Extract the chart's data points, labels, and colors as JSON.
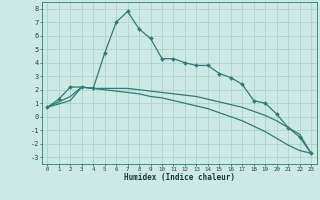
{
  "xlabel": "Humidex (Indice chaleur)",
  "background_color": "#cce9e5",
  "grid_color": "#aacfcb",
  "line_color": "#2e7d72",
  "xlim": [
    -0.5,
    23.5
  ],
  "ylim": [
    -3.5,
    8.5
  ],
  "xticks": [
    0,
    1,
    2,
    3,
    4,
    5,
    6,
    7,
    8,
    9,
    10,
    11,
    12,
    13,
    14,
    15,
    16,
    17,
    18,
    19,
    20,
    21,
    22,
    23
  ],
  "yticks": [
    -3,
    -2,
    -1,
    0,
    1,
    2,
    3,
    4,
    5,
    6,
    7,
    8
  ],
  "series1_x": [
    0,
    1,
    2,
    3,
    4,
    5,
    6,
    7,
    8,
    9,
    10,
    11,
    12,
    13,
    14,
    15,
    16,
    17,
    18,
    19,
    20,
    21,
    22,
    23
  ],
  "series1_y": [
    0.7,
    1.3,
    2.2,
    2.2,
    2.1,
    4.7,
    7.0,
    7.8,
    6.5,
    5.8,
    4.3,
    4.3,
    4.0,
    3.8,
    3.8,
    3.2,
    2.9,
    2.4,
    1.2,
    1.0,
    0.2,
    -0.8,
    -1.5,
    -2.7
  ],
  "series2_x": [
    0,
    2,
    3,
    4,
    5,
    6,
    7,
    8,
    9,
    10,
    11,
    12,
    13,
    14,
    15,
    16,
    17,
    18,
    19,
    20,
    21,
    22,
    23
  ],
  "series2_y": [
    0.7,
    1.5,
    2.2,
    2.1,
    2.1,
    2.1,
    2.1,
    2.0,
    1.9,
    1.8,
    1.7,
    1.6,
    1.5,
    1.3,
    1.1,
    0.9,
    0.7,
    0.4,
    0.1,
    -0.3,
    -0.8,
    -1.3,
    -2.7
  ],
  "series3_x": [
    0,
    2,
    3,
    4,
    5,
    6,
    7,
    8,
    9,
    10,
    11,
    12,
    13,
    14,
    15,
    16,
    17,
    18,
    19,
    20,
    21,
    22,
    23
  ],
  "series3_y": [
    0.7,
    1.2,
    2.2,
    2.1,
    2.0,
    1.9,
    1.8,
    1.7,
    1.5,
    1.4,
    1.2,
    1.0,
    0.8,
    0.6,
    0.3,
    0.0,
    -0.3,
    -0.7,
    -1.1,
    -1.6,
    -2.1,
    -2.5,
    -2.7
  ]
}
